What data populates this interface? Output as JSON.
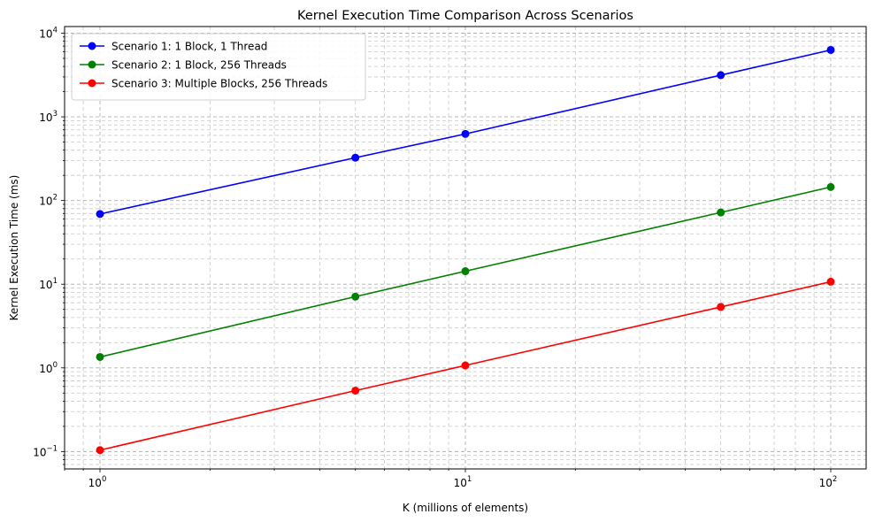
{
  "chart_data": {
    "type": "line",
    "title": "Kernel Execution Time Comparison Across Scenarios",
    "xlabel": "K (millions of elements)",
    "ylabel": "Kernel Execution Time (ms)",
    "xscale": "log",
    "yscale": "log",
    "xlim": [
      0.8,
      125
    ],
    "ylim": [
      0.062,
      12000
    ],
    "x": [
      1,
      5,
      10,
      50,
      100
    ],
    "xticks": [
      {
        "value": 1,
        "base": "10",
        "exp": "0"
      },
      {
        "value": 10,
        "base": "10",
        "exp": "1"
      },
      {
        "value": 100,
        "base": "10",
        "exp": "2"
      }
    ],
    "yticks": [
      {
        "value": 0.1,
        "base": "10",
        "exp": "−1"
      },
      {
        "value": 1,
        "base": "10",
        "exp": "0"
      },
      {
        "value": 10,
        "base": "10",
        "exp": "1"
      },
      {
        "value": 100,
        "base": "10",
        "exp": "2"
      },
      {
        "value": 1000,
        "base": "10",
        "exp": "3"
      },
      {
        "value": 10000,
        "base": "10",
        "exp": "4"
      }
    ],
    "grid": true,
    "grid_style": "dashed",
    "legend_position": "top-left",
    "series": [
      {
        "name": "Scenario 1: 1 Block, 1 Thread",
        "color": "#0000ff",
        "marker": "circle",
        "values": [
          69,
          325,
          625,
          3150,
          6300
        ]
      },
      {
        "name": "Scenario 2: 1 Block, 256 Threads",
        "color": "#008000",
        "marker": "circle",
        "values": [
          1.35,
          7.1,
          14.3,
          72,
          145
        ]
      },
      {
        "name": "Scenario 3: Multiple Blocks, 256 Threads",
        "color": "#ff0000",
        "marker": "circle",
        "values": [
          0.104,
          0.535,
          1.07,
          5.35,
          10.7
        ]
      }
    ]
  }
}
